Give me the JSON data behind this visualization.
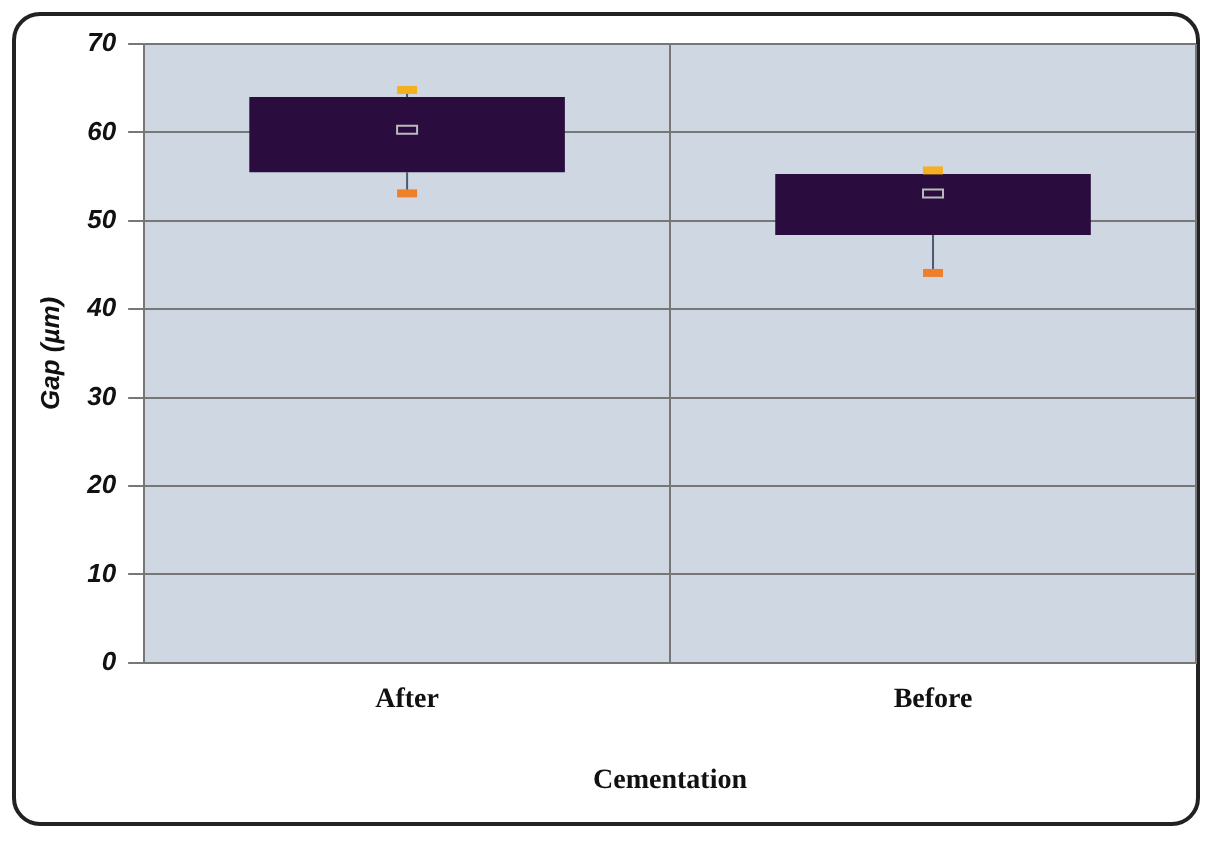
{
  "chart_data": {
    "type": "box",
    "xlabel": "Cementation",
    "ylabel": "Gap (µm)",
    "categories": [
      "After",
      "Before"
    ],
    "boxes": [
      {
        "low": 53.1,
        "q1": 55.5,
        "median": 60.3,
        "q3": 64,
        "high": 64.8
      },
      {
        "low": 44.1,
        "q1": 48.4,
        "median": 53.1,
        "q3": 55.3,
        "high": 55.7
      }
    ],
    "color": "#2a0c3e",
    "ylim": [
      0,
      70
    ],
    "yticks": [
      0,
      10,
      20,
      30,
      40,
      50,
      60,
      70
    ],
    "grid": true
  }
}
